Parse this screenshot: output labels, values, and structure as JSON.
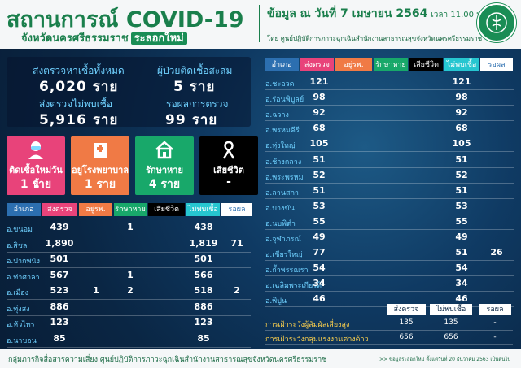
{
  "header": {
    "title": "สถานการณ์ COVID-19",
    "subtitle": "จังหวัดนครศรีธรรมราช",
    "wave_badge": "ระลอกใหม่",
    "date_text": "ข้อมูล ณ วันที่ 7 เมษายน 2564",
    "time_text": "เวลา 11.00 น.",
    "byline": "โดย ศูนย์ปฏิบัติการภาวะฉุกเฉินสำนักงานสาธารณสุขจังหวัดนครศรีธรรมราช"
  },
  "stats": {
    "tested_label": "ส่งตรวจหาเชื้อทั้งหมด",
    "tested_value": "6,020 ราย",
    "negative_label": "ส่งตรวจไม่พบเชื้อ",
    "negative_value": "5,916 ราย",
    "cumulative_label": "ผู้ป่วยติดเชื้อสะสม",
    "cumulative_value": "5 ราย",
    "pending_label": "รอผลการตรวจ",
    "pending_value": "99 ราย"
  },
  "cards": [
    {
      "label": "ติดเชื้อใหม่วันนี้",
      "value": "1 ราย",
      "icon": "masked-person-icon",
      "color": "#e8437a"
    },
    {
      "label": "อยู่โรงพยาบาล",
      "value": "1 ราย",
      "icon": "hospital-icon",
      "color": "#f07a45"
    },
    {
      "label": "รักษาหาย",
      "value": "4 ราย",
      "icon": "home-icon",
      "color": "#18a86a"
    },
    {
      "label": "เสียชีวิต",
      "value": "-",
      "icon": "mourning-ribbon-icon",
      "color": "#000000"
    }
  ],
  "table_headers": [
    {
      "label": "อำเภอ",
      "color": "#2c6fb0"
    },
    {
      "label": "ส่งตรวจ",
      "color": "#e8437a"
    },
    {
      "label": "อยู่รพ.",
      "color": "#f07a45"
    },
    {
      "label": "รักษาหาย",
      "color": "#18a86a"
    },
    {
      "label": "เสียชีวิต",
      "color": "#000000"
    },
    {
      "label": "ไม่พบเชื้อ",
      "color": "#26c6d0"
    },
    {
      "label": "รอผล",
      "color": "#ffffff"
    }
  ],
  "left_rows": [
    {
      "name": "อ.ขนอม",
      "tested": "439",
      "hosp": "",
      "rec": "1",
      "death": "",
      "neg": "438",
      "pend": ""
    },
    {
      "name": "อ.สิชล",
      "tested": "1,890",
      "hosp": "",
      "rec": "",
      "death": "",
      "neg": "1,819",
      "pend": "71"
    },
    {
      "name": "อ.ปากพนัง",
      "tested": "501",
      "hosp": "",
      "rec": "",
      "death": "",
      "neg": "501",
      "pend": ""
    },
    {
      "name": "อ.ท่าศาลา",
      "tested": "567",
      "hosp": "",
      "rec": "1",
      "death": "",
      "neg": "566",
      "pend": ""
    },
    {
      "name": "อ.เมือง",
      "tested": "523",
      "hosp": "1",
      "rec": "2",
      "death": "",
      "neg": "518",
      "pend": "2"
    },
    {
      "name": "อ.ทุ่งสง",
      "tested": "886",
      "hosp": "",
      "rec": "",
      "death": "",
      "neg": "886",
      "pend": ""
    },
    {
      "name": "อ.หัวไทร",
      "tested": "123",
      "hosp": "",
      "rec": "",
      "death": "",
      "neg": "123",
      "pend": ""
    },
    {
      "name": "อ.นาบอน",
      "tested": "85",
      "hosp": "",
      "rec": "",
      "death": "",
      "neg": "85",
      "pend": ""
    }
  ],
  "right_rows": [
    {
      "name": "อ.ชะอวด",
      "tested": "121",
      "neg": "121",
      "pend": ""
    },
    {
      "name": "อ.ร่อนพิบูลย์",
      "tested": "98",
      "neg": "98",
      "pend": ""
    },
    {
      "name": "อ.ฉวาง",
      "tested": "92",
      "neg": "92",
      "pend": ""
    },
    {
      "name": "อ.พรหมคีรี",
      "tested": "68",
      "neg": "68",
      "pend": ""
    },
    {
      "name": "อ.ทุ่งใหญ่",
      "tested": "105",
      "neg": "105",
      "pend": ""
    },
    {
      "name": "อ.ช้างกลาง",
      "tested": "51",
      "neg": "51",
      "pend": ""
    },
    {
      "name": "อ.พระพรหม",
      "tested": "52",
      "neg": "52",
      "pend": ""
    },
    {
      "name": "อ.ลานสกา",
      "tested": "51",
      "neg": "51",
      "pend": ""
    },
    {
      "name": "อ.บางขัน",
      "tested": "53",
      "neg": "53",
      "pend": ""
    },
    {
      "name": "อ.นบพิตำ",
      "tested": "55",
      "neg": "55",
      "pend": ""
    },
    {
      "name": "อ.จุฬาภรณ์",
      "tested": "49",
      "neg": "49",
      "pend": ""
    },
    {
      "name": "อ.เชียรใหญ่",
      "tested": "77",
      "neg": "51",
      "pend": "26"
    },
    {
      "name": "อ.ถ้ำพรรณรา",
      "tested": "54",
      "neg": "54",
      "pend": ""
    },
    {
      "name": "อ.เฉลิมพระเกียรติ",
      "tested": "34",
      "neg": "34",
      "pend": ""
    },
    {
      "name": "อ.พิปูน",
      "tested": "46",
      "neg": "46",
      "pend": ""
    }
  ],
  "surveillance": {
    "headers": [
      "ส่งตรวจ",
      "ไม่พบเชื้อ",
      "รอผล"
    ],
    "rows": [
      {
        "label": "การเฝ้าระวังผู้สัมผัสเสี่ยงสูง",
        "tested": "135",
        "neg": "135",
        "pend": "-"
      },
      {
        "label": "การเฝ้าระวังกลุ่มแรงงานต่างด้าว",
        "tested": "656",
        "neg": "656",
        "pend": "-"
      }
    ]
  },
  "footer": {
    "text": "กลุ่มภารกิจสื่อสารความเสี่ยง  ศูนย์ปฏิบัติการภาวะฉุกเฉินสำนักงานสาธารณสุขจังหวัดนครศรีธรรมราช",
    "note": ">> ข้อมูลระลอกใหม่ ตั้งแต่วันที่ 20 ธันวาคม 2563 เป็นต้นไป"
  }
}
